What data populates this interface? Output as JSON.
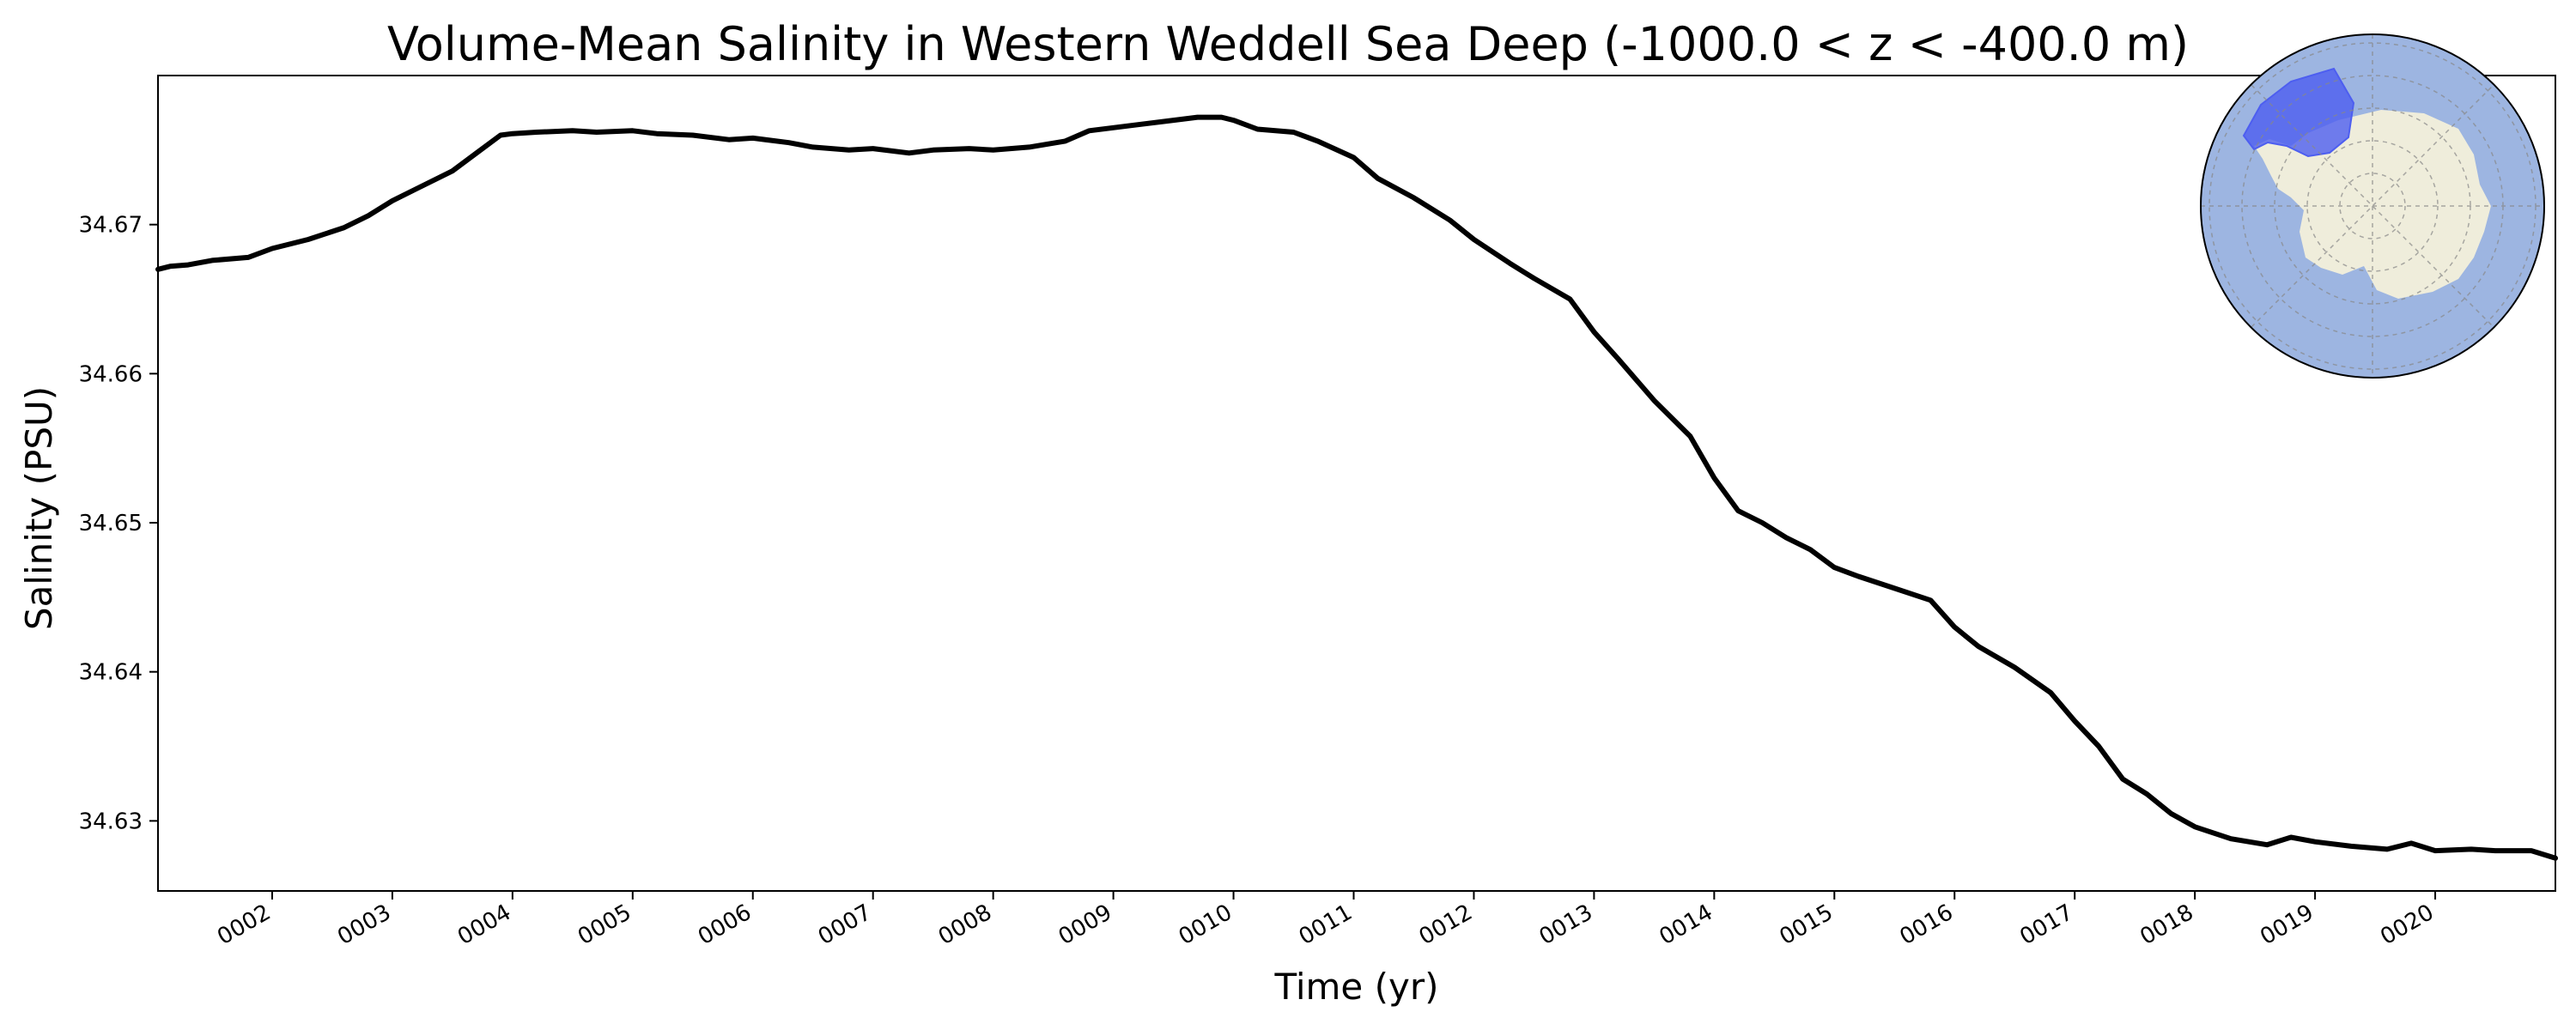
{
  "chart_data": {
    "type": "line",
    "title": "Volume-Mean Salinity in Western Weddell Sea Deep (-1000.0 < z < -400.0 m)",
    "xlabel": "Time (yr)",
    "ylabel": "Salinity (PSU)",
    "xlim": [
      1.05,
      21.0
    ],
    "ylim": [
      34.6253,
      34.68
    ],
    "grid": false,
    "x_tick_labels": [
      "0002",
      "0003",
      "0004",
      "0005",
      "0006",
      "0007",
      "0008",
      "0009",
      "0010",
      "0011",
      "0012",
      "0013",
      "0014",
      "0015",
      "0016",
      "0017",
      "0018",
      "0019",
      "0020"
    ],
    "y_ticks": [
      34.63,
      34.64,
      34.65,
      34.66,
      34.67
    ],
    "y_tick_labels": [
      "34.63",
      "34.64",
      "34.65",
      "34.66",
      "34.67"
    ],
    "series": [
      {
        "color": "#000000",
        "x": [
          1.05,
          1.15,
          1.3,
          1.5,
          1.8,
          2.0,
          2.3,
          2.6,
          2.8,
          3.0,
          3.2,
          3.5,
          3.7,
          3.9,
          4.0,
          4.2,
          4.5,
          4.7,
          5.0,
          5.2,
          5.5,
          5.8,
          6.0,
          6.3,
          6.5,
          6.8,
          7.0,
          7.3,
          7.5,
          7.8,
          8.0,
          8.3,
          8.6,
          8.8,
          9.0,
          9.2,
          9.5,
          9.7,
          9.9,
          10.0,
          10.2,
          10.5,
          10.7,
          11.0,
          11.2,
          11.5,
          11.8,
          12.0,
          12.3,
          12.5,
          12.8,
          13.0,
          13.2,
          13.5,
          13.8,
          14.0,
          14.2,
          14.4,
          14.6,
          14.8,
          15.0,
          15.2,
          15.5,
          15.8,
          16.0,
          16.2,
          16.5,
          16.8,
          17.0,
          17.2,
          17.4,
          17.6,
          17.8,
          18.0,
          18.3,
          18.6,
          18.8,
          19.0,
          19.3,
          19.6,
          19.8,
          20.0,
          20.3,
          20.5,
          20.8,
          21.0
        ],
        "y": [
          34.667,
          34.6672,
          34.6673,
          34.6676,
          34.6678,
          34.6684,
          34.669,
          34.6698,
          34.6706,
          34.6716,
          34.6724,
          34.6736,
          34.6748,
          34.676,
          34.6761,
          34.6762,
          34.6763,
          34.6762,
          34.6763,
          34.6761,
          34.676,
          34.6757,
          34.6758,
          34.6755,
          34.6752,
          34.675,
          34.6751,
          34.6748,
          34.675,
          34.6751,
          34.675,
          34.6752,
          34.6756,
          34.6763,
          34.6765,
          34.6767,
          34.677,
          34.6772,
          34.6772,
          34.677,
          34.6764,
          34.6762,
          34.6756,
          34.6745,
          34.6731,
          34.6718,
          34.6703,
          34.669,
          34.6674,
          34.6664,
          34.665,
          34.6628,
          34.661,
          34.6582,
          34.6558,
          34.653,
          34.6508,
          34.65,
          34.649,
          34.6482,
          34.647,
          34.6464,
          34.6456,
          34.6448,
          34.643,
          34.6417,
          34.6403,
          34.6386,
          34.6367,
          34.635,
          34.6328,
          34.6318,
          34.6305,
          34.6296,
          34.6288,
          34.6284,
          34.6289,
          34.6286,
          34.6283,
          34.6281,
          34.6285,
          34.628,
          34.6281,
          34.628,
          34.628,
          34.6275
        ]
      }
    ],
    "inset_map": {
      "type": "south-polar-map",
      "ocean_color": "#9db5e1",
      "land_color": "#efeddb",
      "region_color": "#4d5ef0",
      "region": "Western Weddell Sea"
    }
  }
}
